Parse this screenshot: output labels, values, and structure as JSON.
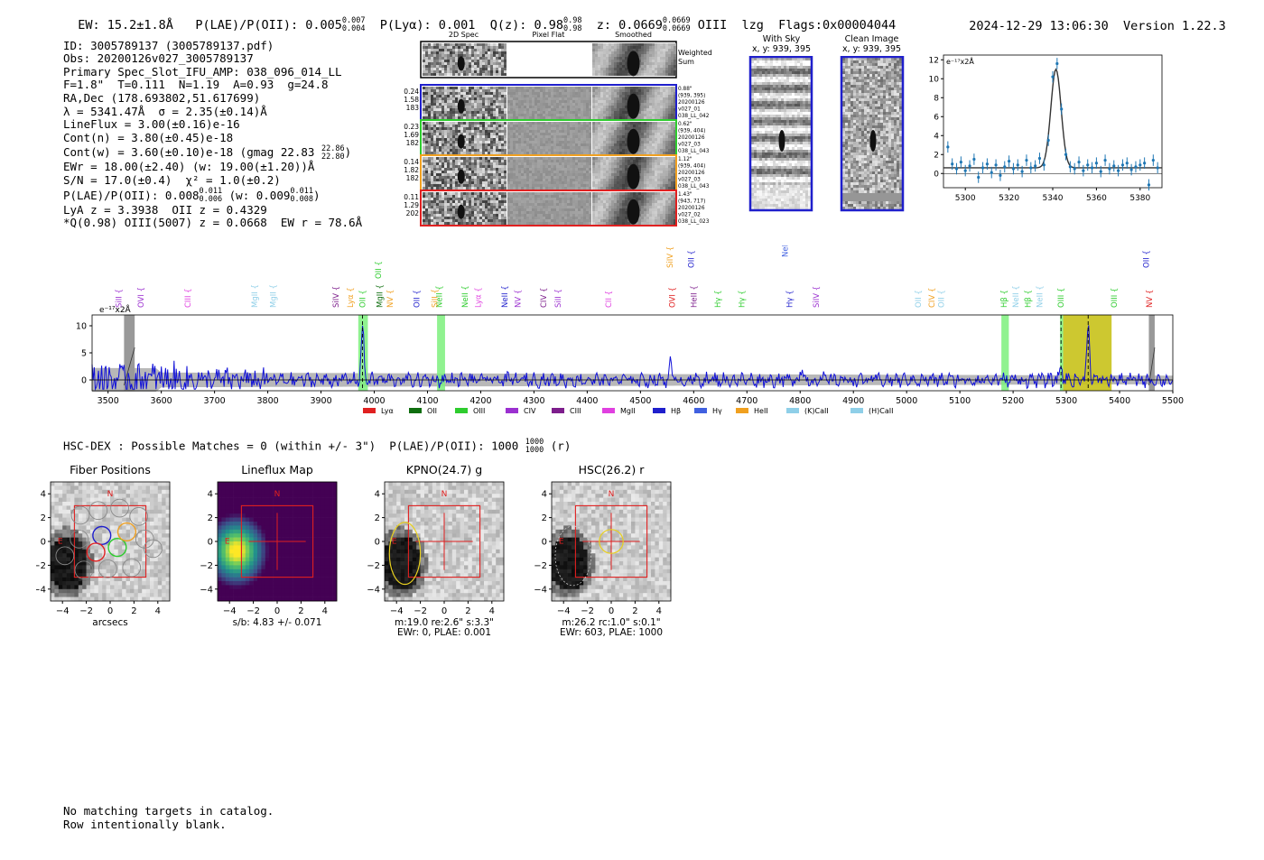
{
  "header": {
    "ew": "EW: 15.2±1.8Å",
    "plae_label": "P(LAE)/P(OII): 0.005",
    "plae_hi": "0.007",
    "plae_lo": "0.004",
    "plya": "P(Lyα): 0.001",
    "qz_label": "Q(z): 0.98",
    "qz_hi": "0.98",
    "qz_lo": "0.98",
    "z_label": "z: 0.0669",
    "z_hi": "0.0669",
    "z_lo": "0.0669",
    "z_line": "OIII",
    "lzg": "lzg",
    "flags": "Flags:0x00004044",
    "datetime": "2024-12-29 13:06:30",
    "version": "Version 1.22.3"
  },
  "info": {
    "id": "ID: 3005789137 (3005789137.pdf)",
    "obs": "Obs: 20200126v027_3005789137",
    "primary": "Primary Spec_Slot_IFU_AMP: 038_096_014_LL",
    "params": "F=1.8\"  T=0.111  N=1.19  A=0.93  g=24.8",
    "radec": "RA,Dec (178.693802,51.617699)",
    "lambda": "λ = 5341.47Å  σ = 2.35(±0.14)Å",
    "lineflux": "LineFlux = 3.00(±0.16)e-16",
    "contn": "Cont(n) = 3.80(±0.45)e-18",
    "contw": "Cont(w) = 3.60(±0.10)e-18 (gmag 22.83",
    "gmag_hi": "22.86",
    "gmag_lo": "22.80",
    "gmag_close": ")",
    "ewr": "EWr = 18.00(±2.40) (w: 19.00(±1.20))Å",
    "sn": "S/N = 17.0(±0.4)  χ² = 1.0(±0.2)",
    "plae2": "P(LAE)/P(OII): 0.008",
    "plae2_hi": "0.011",
    "plae2_lo": "0.006",
    "plae2_w": "(w: 0.009",
    "plae2_w_hi": "0.011",
    "plae2_w_lo": "0.008",
    "plae2_close": ")",
    "lya": "LyA z = 3.3938  OII z = 0.4329",
    "q": "*Q(0.98) OIII(5007) z = 0.0668  EW r = 78.6Å"
  },
  "cutouts": {
    "col_2d": "2D Spec",
    "col_flat": "Pixel Flat",
    "col_smooth": "Smoothed",
    "weighted": "Weighted",
    "sum": "Sum",
    "rows": [
      {
        "color": "#1f1fcc",
        "left": [
          "0.24",
          "1.58",
          "183"
        ],
        "right": [
          "0.88\"",
          "(939, 395)",
          "20200126",
          "v027_01",
          "038_LL_042"
        ]
      },
      {
        "color": "#2ecc2e",
        "left": [
          "0.23",
          "1.69",
          "182"
        ],
        "right": [
          "0.62\"",
          "(939, 404)",
          "20200126",
          "v027_03",
          "038_LL_043"
        ]
      },
      {
        "color": "#f0a020",
        "left": [
          "0.14",
          "1.82",
          "182"
        ],
        "right": [
          "1.12\"",
          "(939, 404)",
          "20200126",
          "v027_03",
          "038_LL_043"
        ]
      },
      {
        "color": "#e02020",
        "left": [
          "0.11",
          "1.29",
          "202"
        ],
        "right": [
          "1.43\"",
          "(943, 717)",
          "20200126",
          "v027_02",
          "038_LL_023"
        ]
      }
    ]
  },
  "sky": {
    "with_sky_title": "With Sky",
    "with_sky_xy": "x, y: 939, 395",
    "clean_title": "Clean Image",
    "clean_xy": "x, y: 939, 395"
  },
  "zoom_chart": {
    "type": "scatter",
    "unit_label": "e⁻¹⁷x2Å",
    "xlim": [
      5290,
      5390
    ],
    "ylim": [
      -1.5,
      12.5
    ],
    "xticks": [
      5300,
      5320,
      5340,
      5360,
      5380
    ],
    "yticks": [
      0,
      2,
      4,
      6,
      8,
      10,
      12
    ],
    "fit": {
      "center": 5341.47,
      "sigma": 2.35,
      "amp": 10.4,
      "cont": 0.6
    },
    "x": [
      5292,
      5294,
      5296,
      5298,
      5300,
      5302,
      5304,
      5306,
      5308,
      5310,
      5312,
      5314,
      5316,
      5318,
      5320,
      5322,
      5324,
      5326,
      5328,
      5330,
      5332,
      5334,
      5336,
      5338,
      5340,
      5342,
      5344,
      5346,
      5348,
      5350,
      5352,
      5354,
      5356,
      5358,
      5360,
      5362,
      5364,
      5366,
      5368,
      5370,
      5372,
      5374,
      5376,
      5378,
      5380,
      5382,
      5384,
      5386,
      5388
    ],
    "y": [
      2.8,
      1.0,
      0.5,
      1.2,
      0.3,
      0.8,
      1.5,
      -0.4,
      0.6,
      1.0,
      0.1,
      0.9,
      -0.2,
      0.7,
      1.3,
      0.5,
      0.9,
      0.2,
      1.4,
      0.6,
      0.8,
      1.6,
      0.9,
      3.5,
      10.2,
      11.6,
      6.8,
      2.0,
      0.7,
      0.5,
      1.2,
      0.3,
      0.9,
      0.6,
      1.1,
      0.2,
      1.4,
      0.5,
      0.8,
      0.3,
      0.9,
      1.1,
      0.4,
      0.7,
      0.9,
      1.1,
      -1.2,
      1.4,
      0.6
    ]
  },
  "spectrum": {
    "type": "line",
    "unit_label": "e⁻¹⁷x2Å",
    "xlim": [
      3470,
      5500
    ],
    "ylim": [
      -2,
      12
    ],
    "xticks": [
      3500,
      3600,
      3700,
      3800,
      3900,
      4000,
      4100,
      4200,
      4300,
      4400,
      4500,
      4600,
      4700,
      4800,
      4900,
      5000,
      5100,
      5200,
      5300,
      5400,
      5500
    ],
    "yticks": [
      0,
      5,
      10
    ],
    "green_bands": [
      [
        3970,
        3988
      ],
      [
        4118,
        4133
      ],
      [
        5178,
        5192
      ],
      [
        5288,
        5294
      ]
    ],
    "yellow_band": [
      5294,
      5385
    ],
    "gray_bands": [
      [
        3530,
        3550
      ],
      [
        5455,
        5466
      ]
    ],
    "dashed_lines": [
      3978,
      5290,
      5341
    ],
    "emission_peaks": [
      {
        "x": 3978,
        "y": 9.5
      },
      {
        "x": 5341,
        "y": 10.6
      },
      {
        "x": 4556,
        "y": 3
      },
      {
        "x": 4802,
        "y": 2.4
      },
      {
        "x": 5290,
        "y": 2.5
      }
    ],
    "line_labels": [
      {
        "name": "SiII",
        "x": 3520,
        "level": 0,
        "color": "#9b30d0"
      },
      {
        "name": "OVI",
        "x": 3562,
        "level": 1,
        "color": "#9b30d0"
      },
      {
        "name": "CIII",
        "x": 3650,
        "level": 0,
        "color": "#e040e0"
      },
      {
        "name": "MgII",
        "x": 3775,
        "level": 0,
        "color": "#8fcfe8"
      },
      {
        "name": "MgII",
        "x": 3810,
        "level": 0,
        "color": "#8fcfe8"
      },
      {
        "name": "SiIV",
        "x": 3928,
        "level": 0,
        "color": "#7d1e8c"
      },
      {
        "name": "Lyα",
        "x": 3955,
        "level": 0,
        "color": "#f0a020"
      },
      {
        "name": "OII",
        "x": 3978,
        "level": 0,
        "color": "#2ecc2e"
      },
      {
        "name": "OII",
        "x": 4008,
        "level": 4,
        "color": "#2ecc2e"
      },
      {
        "name": "MgII",
        "x": 4010,
        "level": 0,
        "color": "#0f6e0f"
      },
      {
        "name": "NV",
        "x": 4030,
        "level": 0,
        "color": "#f0a020"
      },
      {
        "name": "OII",
        "x": 4080,
        "level": 0,
        "color": "#1f1fcc"
      },
      {
        "name": "NeII",
        "x": 4122,
        "level": 0,
        "color": "#2ecc2e"
      },
      {
        "name": "SiII",
        "x": 4114,
        "level": 0,
        "color": "#f0a020"
      },
      {
        "name": "NeII",
        "x": 4170,
        "level": 0,
        "color": "#2ecc2e"
      },
      {
        "name": "Lyα",
        "x": 4195,
        "level": 0,
        "color": "#e040e0"
      },
      {
        "name": "NeII",
        "x": 4245,
        "level": 0,
        "color": "#1f1fcc"
      },
      {
        "name": "NV",
        "x": 4270,
        "level": 0,
        "color": "#9b30d0"
      },
      {
        "name": "CIV",
        "x": 4318,
        "level": 0,
        "color": "#7d1e8c"
      },
      {
        "name": "SiII",
        "x": 4345,
        "level": 0,
        "color": "#9b30d0"
      },
      {
        "name": "CII",
        "x": 4440,
        "level": 0,
        "color": "#e040e0"
      },
      {
        "name": "SiIV",
        "x": 4555,
        "level": 5,
        "color": "#f0a020"
      },
      {
        "name": "OVI",
        "x": 4560,
        "level": 0,
        "color": "#e02020"
      },
      {
        "name": "OII",
        "x": 4595,
        "level": 5,
        "color": "#1f1fcc"
      },
      {
        "name": "HeII",
        "x": 4600,
        "level": 0,
        "color": "#7d1e8c"
      },
      {
        "name": "Hγ",
        "x": 4645,
        "level": 0,
        "color": "#2ecc2e"
      },
      {
        "name": "Hγ",
        "x": 4690,
        "level": 0,
        "color": "#2ecc2e"
      },
      {
        "name": "NeII",
        "x": 4772,
        "level": 6,
        "color": "#4060e0"
      },
      {
        "name": "Hγ",
        "x": 4780,
        "level": 0,
        "color": "#1f1fcc"
      },
      {
        "name": "SiIV",
        "x": 4830,
        "level": 0,
        "color": "#9b30d0"
      },
      {
        "name": "OII",
        "x": 5022,
        "level": 0,
        "color": "#8fcfe8"
      },
      {
        "name": "CIV",
        "x": 5047,
        "level": 0,
        "color": "#f0a020"
      },
      {
        "name": "OII",
        "x": 5065,
        "level": 0,
        "color": "#8fcfe8"
      },
      {
        "name": "Hβ",
        "x": 5183,
        "level": 0,
        "color": "#2ecc2e"
      },
      {
        "name": "NeII",
        "x": 5205,
        "level": 0,
        "color": "#8fcfe8"
      },
      {
        "name": "Hβ",
        "x": 5228,
        "level": 0,
        "color": "#2ecc2e"
      },
      {
        "name": "NeII",
        "x": 5250,
        "level": 0,
        "color": "#8fcfe8"
      },
      {
        "name": "OIII",
        "x": 5290,
        "level": 0,
        "color": "#2ecc2e"
      },
      {
        "name": "OIII",
        "x": 5390,
        "level": 0,
        "color": "#2ecc2e"
      },
      {
        "name": "NV",
        "x": 5456,
        "level": 0,
        "color": "#e02020"
      },
      {
        "name": "OII",
        "x": 5450,
        "level": 5,
        "color": "#1f1fcc"
      }
    ],
    "legend": [
      {
        "name": "Lyα",
        "color": "#e02020"
      },
      {
        "name": "OII",
        "color": "#0f6e0f"
      },
      {
        "name": "OIII",
        "color": "#2ecc2e"
      },
      {
        "name": "CIV",
        "color": "#9b30d0"
      },
      {
        "name": "CIII",
        "color": "#7d1e8c"
      },
      {
        "name": "MgII",
        "color": "#e040e0"
      },
      {
        "name": "Hβ",
        "color": "#1f1fcc"
      },
      {
        "name": "Hγ",
        "color": "#4060e0"
      },
      {
        "name": "HeII",
        "color": "#f0a020"
      },
      {
        "name": "(K)CaII",
        "color": "#8fcfe8"
      },
      {
        "name": "(H)CaII",
        "color": "#8fcfe8"
      }
    ]
  },
  "hsc": {
    "line_main": "HSC-DEX : Possible Matches = 0 (within +/- 3\")  P(LAE)/P(OII): 1000",
    "line_hi": "1000",
    "line_lo": "1000",
    "line_tail": "(r)"
  },
  "panels": [
    {
      "title": "Fiber Positions",
      "kind": "fiber",
      "caption": [
        "arcsecs"
      ]
    },
    {
      "title": "Lineflux Map",
      "kind": "lineflux",
      "caption": [
        "s/b: 4.83 +/- 0.071"
      ]
    },
    {
      "title": "KPNO(24.7) g",
      "kind": "kpno",
      "caption": [
        "m:19.0  re:2.6\"  s:3.3\"",
        "EWr: 0, PLAE: 0.001"
      ]
    },
    {
      "title": "HSC(26.2) r",
      "kind": "hsc",
      "caption": [
        "m:26.2 rc:1.0\"  s:0.1\"",
        "EWr: 603, PLAE: 1000"
      ]
    }
  ],
  "panel_axes": {
    "ticks": [
      "−4",
      "−2",
      "0",
      "2",
      "4"
    ],
    "n_label": "N",
    "e_label": "E"
  },
  "footer": {
    "line1": "No matching targets in catalog.",
    "line2": "Row intentionally blank."
  },
  "chart_data": [
    {
      "type": "line",
      "title": "",
      "xlabel": "",
      "ylabel": "e⁻¹⁷x2Å",
      "xlim": [
        3470,
        5500
      ],
      "ylim": [
        -2,
        12
      ],
      "series": [
        {
          "name": "",
          "description_only": false
        }
      ]
    },
    {
      "type": "scatter",
      "title": "",
      "xlabel": "",
      "ylabel": "e⁻¹⁷x2Å",
      "xlim": [
        5290,
        5390
      ],
      "ylim": [
        -1.5,
        12.5
      ]
    }
  ]
}
